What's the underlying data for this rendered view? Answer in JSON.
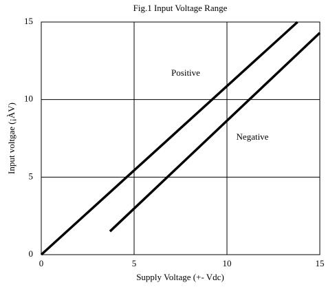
{
  "chart_data": {
    "type": "line",
    "title": "Fig.1 Input Voltage Range",
    "xlabel": "Supply Voltage   (+- Vdc)",
    "ylabel": "Input voltgae   (¡ÀV)",
    "xlim": [
      0,
      15
    ],
    "ylim": [
      0,
      15
    ],
    "xticks": [
      0,
      5,
      10,
      15
    ],
    "yticks": [
      0,
      5,
      10,
      15
    ],
    "grid": true,
    "series": [
      {
        "name": "Positive",
        "color": "#000000",
        "x": [
          0,
          13.8
        ],
        "values": [
          0,
          15
        ]
      },
      {
        "name": "Negative",
        "color": "#000000",
        "x": [
          3.7,
          15
        ],
        "values": [
          1.5,
          14.3
        ]
      }
    ]
  }
}
